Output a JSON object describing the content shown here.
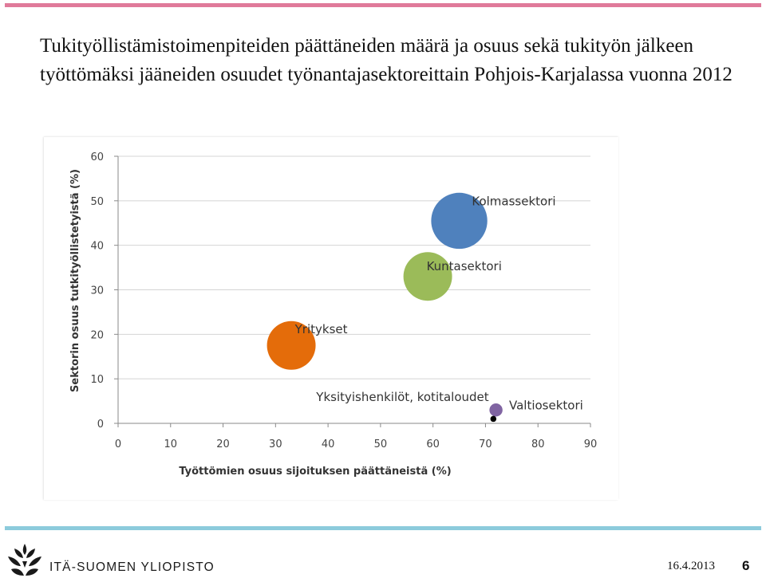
{
  "slide": {
    "title": "Tukityöllistämistoimenpiteiden päättäneiden määrä ja osuus sekä tukityön jälkeen työttömäksi jääneiden osuudet työnantajasektoreittain Pohjois-Karjalassa vuonna 2012",
    "org_name": "ITÄ-SUOMEN YLIOPISTO",
    "date": "16.4.2013",
    "page_number": "6"
  },
  "colors": {
    "top_rule": "#e07a9a",
    "bottom_rule": "#8ccbdc",
    "logo": "#1a1a1a"
  },
  "chart_data": {
    "type": "bubble",
    "xlabel": "Työttömien osuus sijoituksen päättäneistä (%)",
    "ylabel": "Sektorin osuus tutkityöllistetyistä (%)",
    "xlim": [
      0,
      90
    ],
    "ylim": [
      0,
      60
    ],
    "xticks": [
      0,
      10,
      20,
      30,
      40,
      50,
      60,
      70,
      80,
      90
    ],
    "yticks": [
      0,
      10,
      20,
      30,
      40,
      50,
      60
    ],
    "grid": "horizontal",
    "legend": "none",
    "series": [
      {
        "name": "Kolmassektori",
        "x": 65,
        "y": 45.5,
        "size": 15,
        "color": "#4f81bd"
      },
      {
        "name": "Kuntasektori",
        "x": 59,
        "y": 33,
        "size": 13,
        "color": "#9bbb59"
      },
      {
        "name": "Yritykset",
        "x": 33,
        "y": 17.5,
        "size": 13,
        "color": "#e46c0a"
      },
      {
        "name": "Valtiosektori",
        "x": 72,
        "y": 3,
        "size": 3.5,
        "color": "#8064a2"
      },
      {
        "name": "Yksityishenkilöt, kotitaloudet",
        "x": 71.5,
        "y": 1,
        "size": 1.6,
        "color": "#000000"
      }
    ]
  }
}
